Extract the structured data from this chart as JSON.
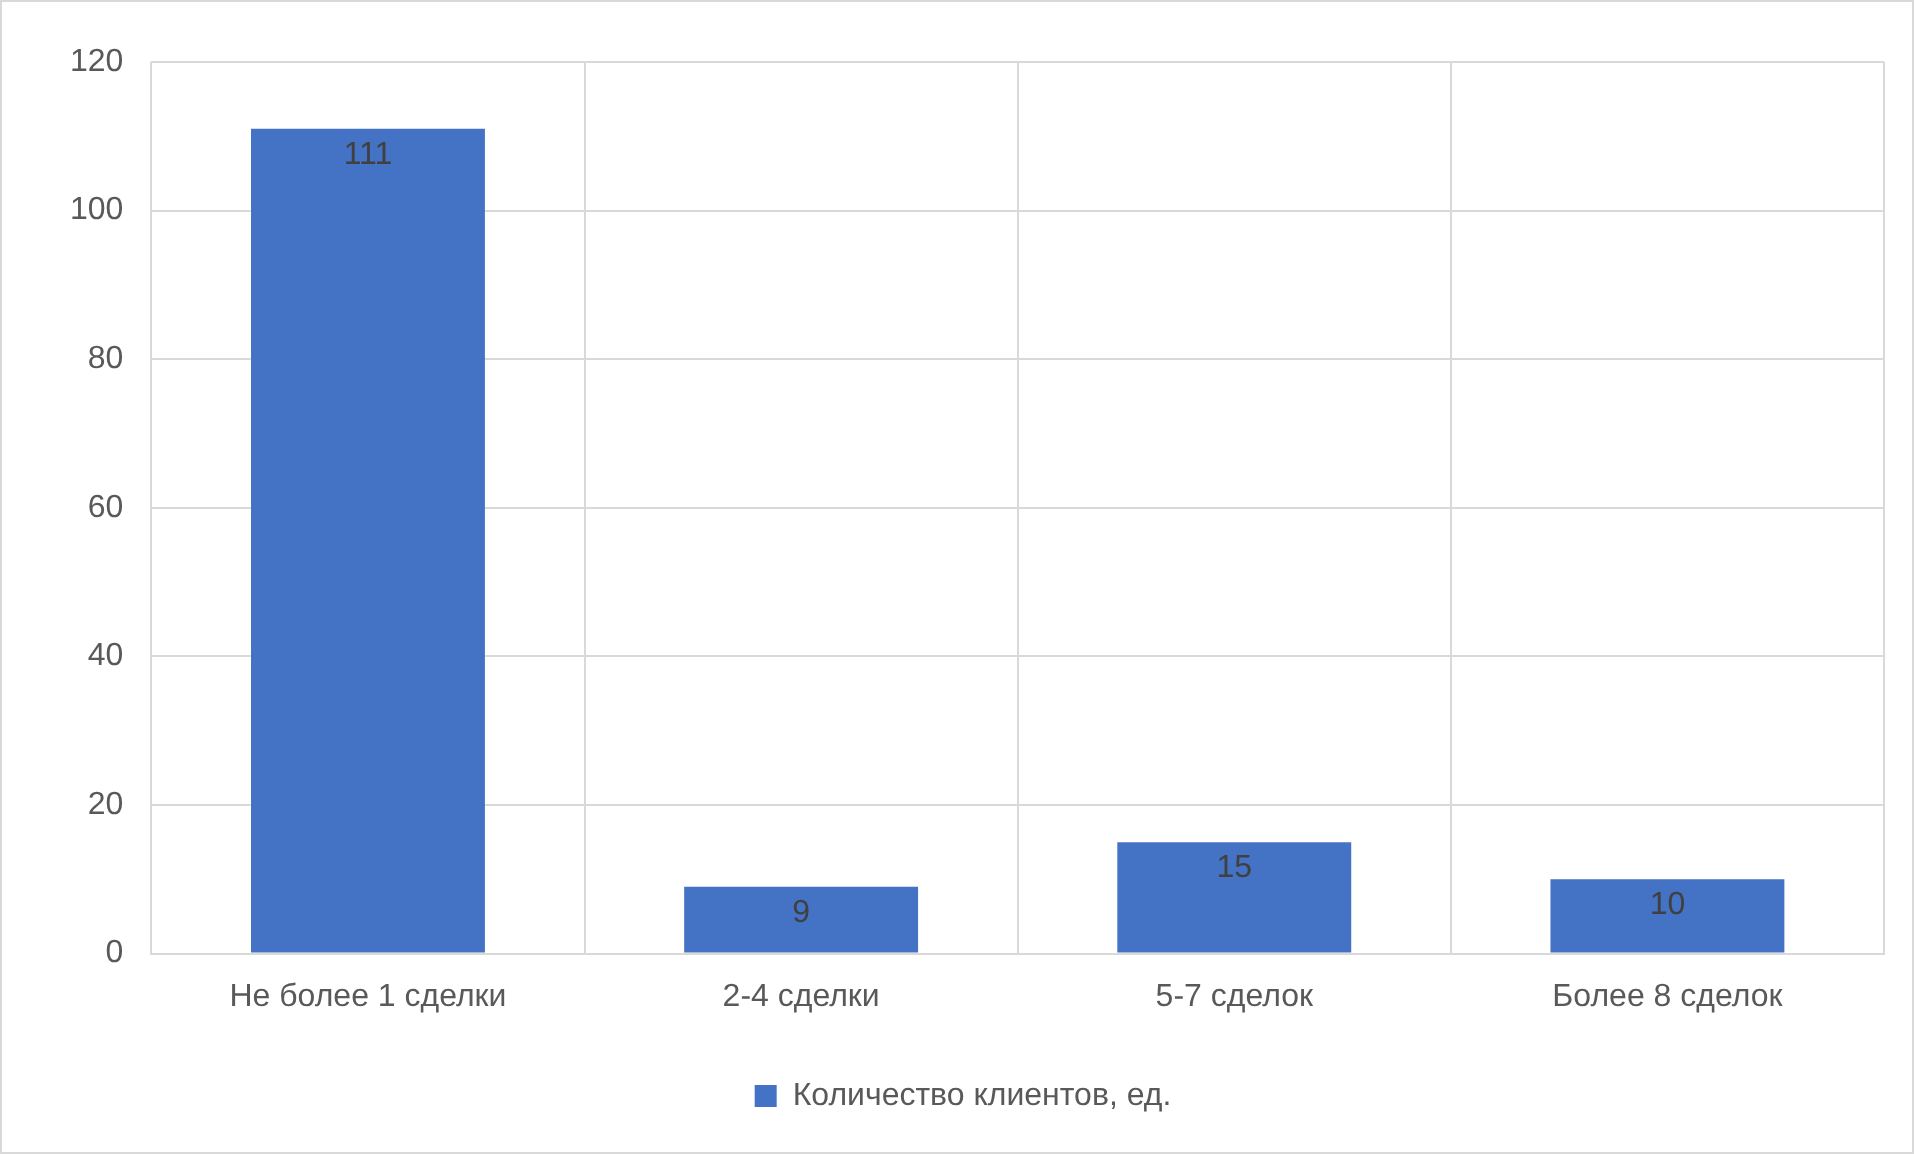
{
  "chart_data": {
    "type": "bar",
    "categories": [
      "Не более 1 сделки",
      "2-4 сделки",
      "5-7 сделок",
      "Более 8 сделок"
    ],
    "series": [
      {
        "name": "Количество клиентов, ед.",
        "color": "#4472c4",
        "values": [
          111,
          9,
          15,
          10
        ]
      }
    ],
    "ylim": [
      0,
      120
    ],
    "yticks": [
      0,
      20,
      40,
      60,
      80,
      100,
      120
    ],
    "grid": true,
    "legend": "bottom",
    "data_labels": true
  }
}
